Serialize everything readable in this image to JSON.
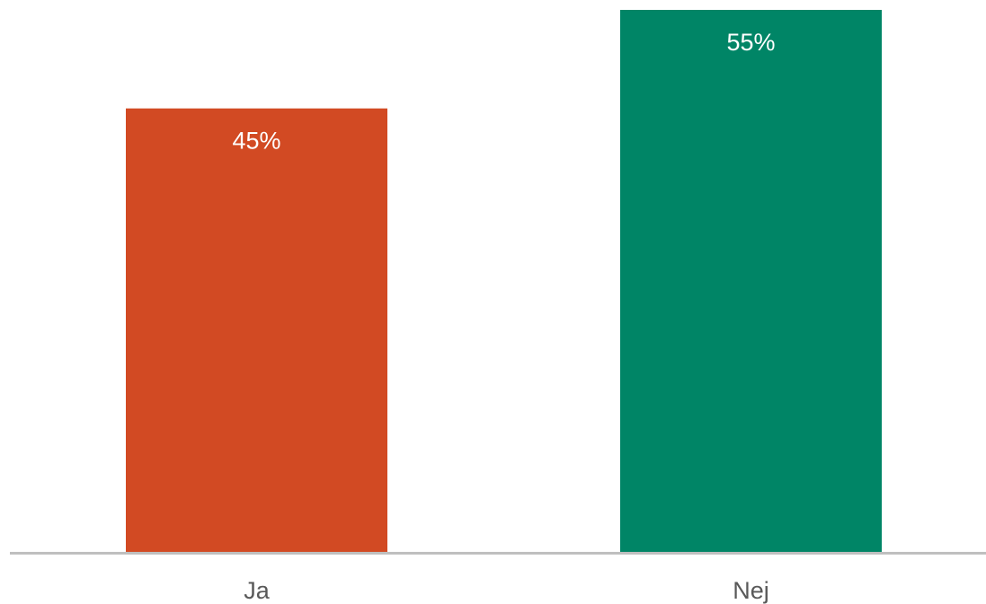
{
  "chart_data": {
    "type": "bar",
    "categories": [
      "Ja",
      "Nej"
    ],
    "values": [
      45,
      55
    ],
    "data_labels": [
      "45%",
      "55%"
    ],
    "colors": [
      "#d24a23",
      "#008566"
    ],
    "ylim": [
      0,
      55
    ],
    "grid": false,
    "legend": "none",
    "title": "",
    "xlabel": "",
    "ylabel": ""
  },
  "style": {
    "axis_color": "#bfbfbf",
    "category_label_color": "#595959",
    "data_label_color": "#ffffff"
  }
}
